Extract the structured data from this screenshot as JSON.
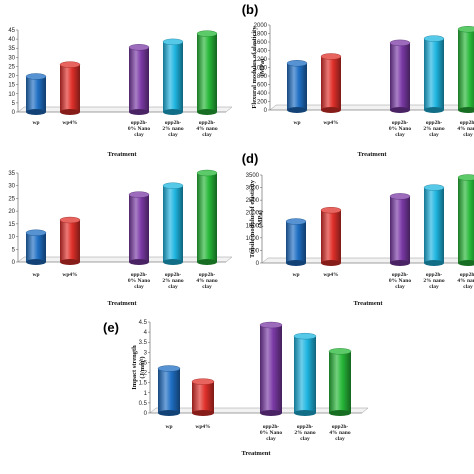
{
  "colors": [
    "#1f6fc4",
    "#e0302a",
    "#7b3aa6",
    "#1eb5e0",
    "#27b838"
  ],
  "chart_data": [
    {
      "type": "bar",
      "panel_label": "",
      "categories": [
        "wp",
        "wp4%",
        "opp2h-\n0% Nano\nclay",
        "opp2h-\n2% nano\nclay",
        "opp2h-\n4% nano\nclay"
      ],
      "values": [
        19.5,
        26,
        35.5,
        38.5,
        43
      ],
      "xlabel": "Treatment",
      "ylabel": "",
      "ylim": [
        0,
        45
      ],
      "yticks": [
        0,
        5,
        10,
        15,
        20,
        25,
        30,
        35,
        40,
        45
      ]
    },
    {
      "type": "bar",
      "panel_label": "(b)",
      "categories": [
        "wp",
        "wp4%",
        "opp2h-\n0% Nano\nclay",
        "opp2h-\n2% nano\nclay",
        "opp2h-\n4% nano\nclay"
      ],
      "values": [
        1100,
        1260,
        1580,
        1680,
        1900
      ],
      "xlabel": "Treatment",
      "ylabel": "Flexural modulus of elasticity\n(MPa)",
      "ylim": [
        0,
        2000
      ],
      "yticks": [
        0,
        200,
        400,
        600,
        800,
        1000,
        1200,
        1400,
        1600,
        1800,
        2000
      ]
    },
    {
      "type": "bar",
      "panel_label": "",
      "categories": [
        "wp",
        "wp4%",
        "opp2h-\n0% Nano\nclay",
        "opp2h-\n2% nano\nclay",
        "opp2h-\n4% nano\nclay"
      ],
      "values": [
        11.5,
        16.5,
        26.5,
        30,
        35
      ],
      "xlabel": "Treatment",
      "ylabel": "",
      "ylim": [
        0,
        35
      ],
      "yticks": [
        0,
        5,
        10,
        15,
        20,
        25,
        30,
        35
      ]
    },
    {
      "type": "bar",
      "panel_label": "(d)",
      "categories": [
        "wp",
        "wp4%",
        "opp2h-\n0% Nano\nclay",
        "opp2h-\n2% nano\nclay",
        "opp2h-\n4% nano\nclay"
      ],
      "values": [
        1650,
        2100,
        2650,
        3000,
        3400
      ],
      "xlabel": "Treatment",
      "ylabel": "Tensile modulus of elasticity\n(MPa)",
      "ylim": [
        0,
        3500
      ],
      "yticks": [
        0,
        500,
        1000,
        1500,
        2000,
        2500,
        3000,
        3500
      ]
    },
    {
      "type": "bar",
      "panel_label": "(e)",
      "categories": [
        "wp",
        "wp4%",
        "opp2h-\n0% Nano\nclay",
        "opp2h-\n2% nano\nclay",
        "opp2h-\n4% nano\nclay"
      ],
      "values": [
        2.2,
        1.55,
        4.35,
        3.8,
        3.05
      ],
      "xlabel": "Treatment",
      "ylabel": "Impact strength\n(J/mm²)",
      "ylim": [
        0,
        4.5
      ],
      "yticks": [
        0,
        0.5,
        1,
        1.5,
        2,
        2.5,
        3,
        3.5,
        4,
        4.5
      ]
    }
  ]
}
